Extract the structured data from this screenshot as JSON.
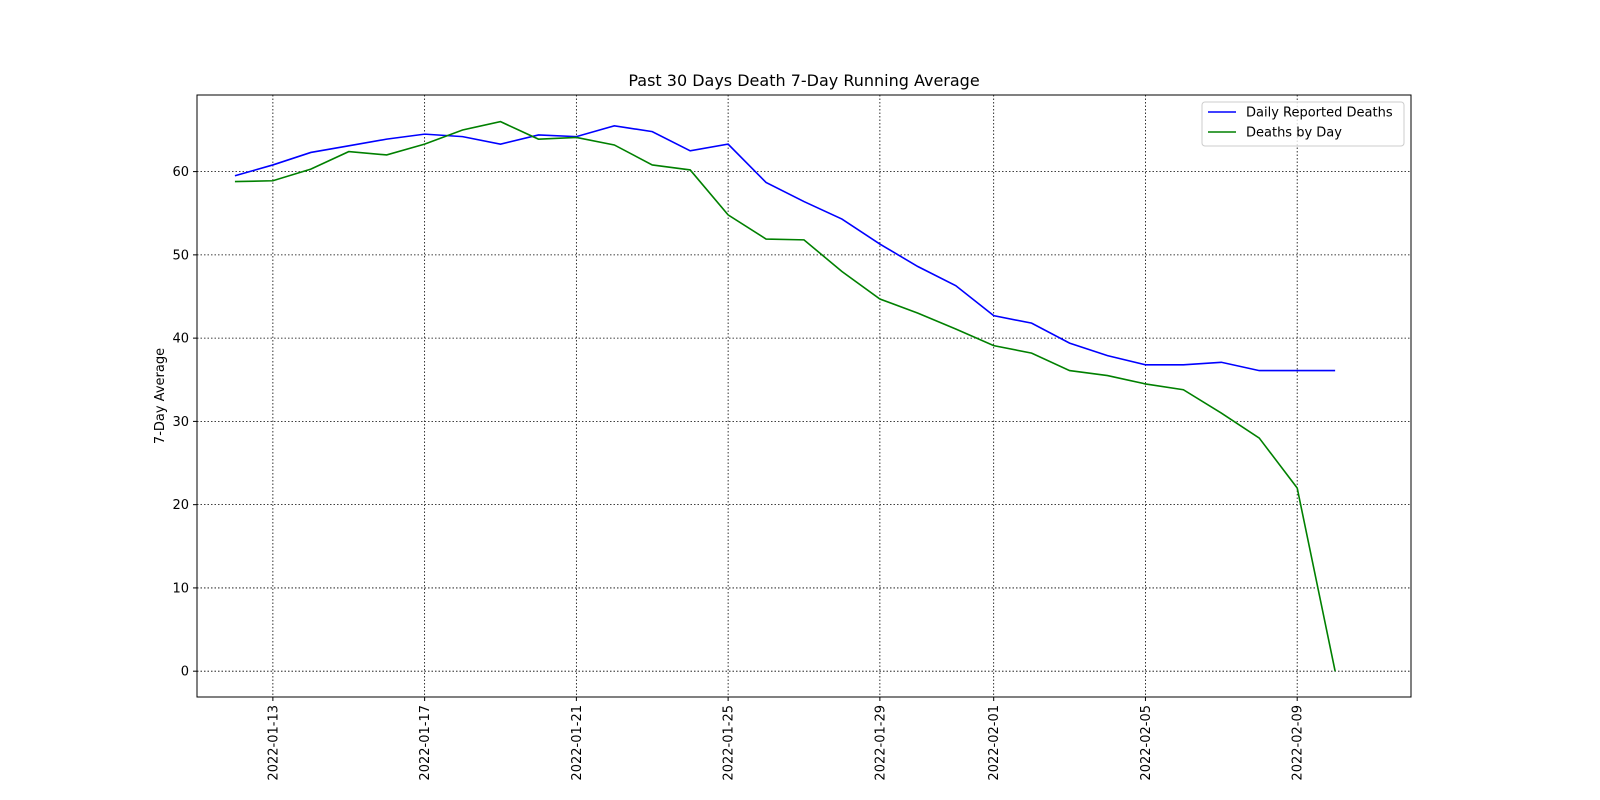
{
  "chart_data": {
    "type": "line",
    "title": "Past 30 Days Death 7-Day Running Average",
    "ylabel": "7-Day Average",
    "x": [
      "2022-01-12",
      "2022-01-13",
      "2022-01-14",
      "2022-01-15",
      "2022-01-16",
      "2022-01-17",
      "2022-01-18",
      "2022-01-19",
      "2022-01-20",
      "2022-01-21",
      "2022-01-22",
      "2022-01-23",
      "2022-01-24",
      "2022-01-25",
      "2022-01-26",
      "2022-01-27",
      "2022-01-28",
      "2022-01-29",
      "2022-01-30",
      "2022-01-31",
      "2022-02-01",
      "2022-02-02",
      "2022-02-03",
      "2022-02-04",
      "2022-02-05",
      "2022-02-06",
      "2022-02-07",
      "2022-02-08",
      "2022-02-09",
      "2022-02-10"
    ],
    "series": [
      {
        "name": "Daily Reported Deaths",
        "color": "#0000ff",
        "values": [
          59.5,
          60.8,
          62.3,
          63.1,
          63.9,
          64.5,
          64.2,
          63.3,
          64.4,
          64.2,
          65.5,
          64.8,
          62.5,
          63.3,
          58.7,
          56.4,
          54.3,
          51.3,
          48.6,
          46.3,
          42.7,
          41.8,
          39.4,
          37.9,
          36.8,
          36.8,
          37.1,
          36.1,
          36.1,
          36.1
        ]
      },
      {
        "name": "Deaths by Day",
        "color": "#008000",
        "values": [
          58.8,
          58.9,
          60.3,
          62.4,
          62.0,
          63.3,
          65.0,
          66.0,
          63.9,
          64.1,
          63.2,
          60.8,
          60.2,
          54.8,
          51.9,
          51.8,
          48.0,
          44.7,
          43.0,
          41.1,
          39.1,
          38.2,
          36.1,
          35.5,
          34.5,
          33.8,
          31.0,
          28.0,
          22.0,
          0
        ]
      }
    ],
    "xlim": [
      "2022-01-11",
      "2022-02-12"
    ],
    "xticks": [
      "2022-01-13",
      "2022-01-17",
      "2022-01-21",
      "2022-01-25",
      "2022-01-29",
      "2022-02-01",
      "2022-02-05",
      "2022-02-09"
    ],
    "ylim": [
      -3.1,
      69.2
    ],
    "yticks": [
      0,
      10,
      20,
      30,
      40,
      50,
      60
    ],
    "grid": true,
    "legend": "upper right"
  }
}
